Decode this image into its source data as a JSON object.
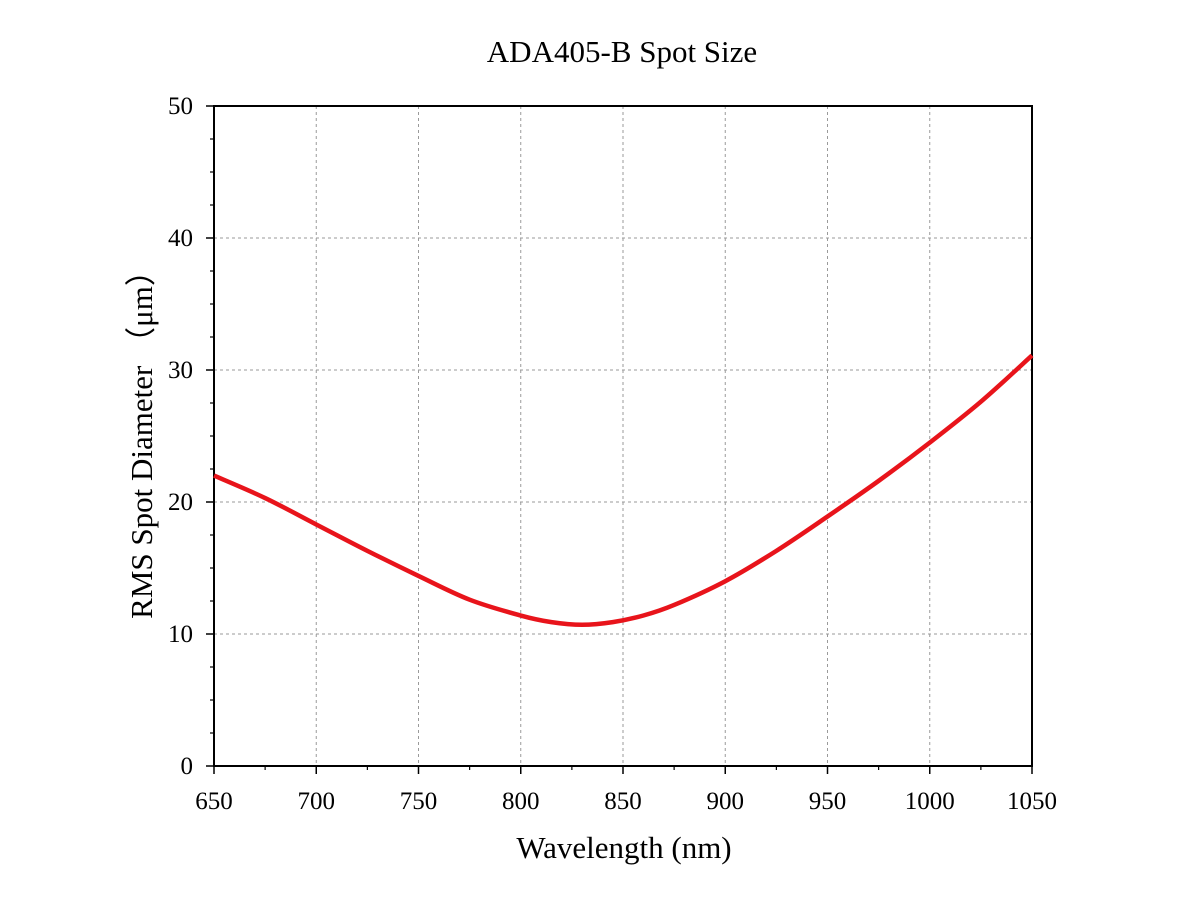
{
  "chart_data": {
    "type": "line",
    "title": "ADA405-B Spot Size",
    "xlabel": "Wavelength (nm)",
    "ylabel": "RMS Spot Diameter （μm）",
    "xlim": [
      650,
      1050
    ],
    "ylim": [
      0,
      50
    ],
    "x_ticks": [
      "650",
      "700",
      "750",
      "800",
      "850",
      "900",
      "950",
      "1000",
      "1050"
    ],
    "y_ticks": [
      "0",
      "10",
      "20",
      "30",
      "40",
      "50"
    ],
    "grid": true,
    "series": [
      {
        "color": "#e8141b",
        "x": [
          650,
          675,
          700,
          725,
          750,
          775,
          800,
          815,
          830,
          845,
          860,
          875,
          900,
          925,
          950,
          975,
          1000,
          1025,
          1050
        ],
        "y": [
          22.0,
          20.3,
          18.3,
          16.3,
          14.4,
          12.6,
          11.4,
          10.9,
          10.7,
          10.9,
          11.4,
          12.2,
          14.0,
          16.3,
          18.9,
          21.6,
          24.5,
          27.6,
          31.1
        ]
      }
    ]
  }
}
